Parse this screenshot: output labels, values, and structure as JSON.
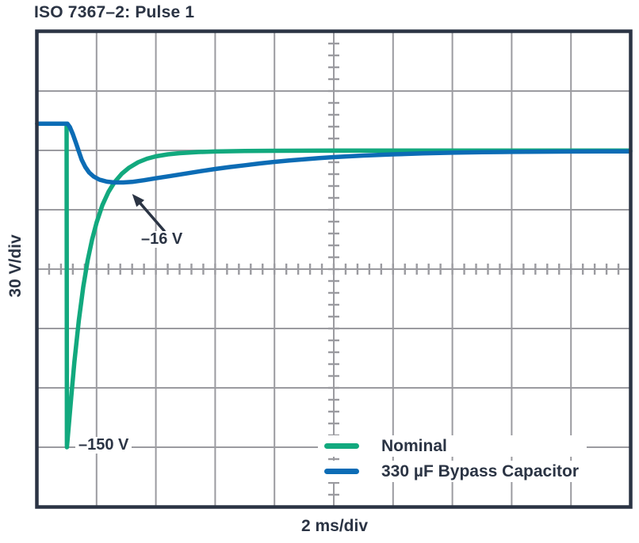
{
  "colors": {
    "navy": "#2B3444",
    "grid": "#9B9BA0",
    "background": "#FFFFFF",
    "green": "#12A97E",
    "blue": "#0C6CB5"
  },
  "chart_data": {
    "type": "line",
    "title": "ISO 7367–2: Pulse 1",
    "xlabel": "2 ms/div",
    "ylabel": "30 V/div",
    "x_units": "ms",
    "y_units": "V",
    "x_per_div": 2,
    "y_per_div": 30,
    "divisions_x": 10,
    "divisions_y": 8,
    "minor_ticks_per_div": 5,
    "x_range": [
      0,
      20
    ],
    "y_range": [
      -180,
      60
    ],
    "grid": "oscilloscope",
    "legend_position": "bottom-right-inside",
    "baseline_V": 13.5,
    "series": [
      {
        "name": "Nominal",
        "color": "#12A97E",
        "points": [
          [
            0,
            13.5
          ],
          [
            0.99,
            13.5
          ],
          [
            1.0,
            -150
          ],
          [
            1.15,
            -124
          ],
          [
            1.25,
            -107
          ],
          [
            1.4,
            -86
          ],
          [
            1.55,
            -69
          ],
          [
            1.7,
            -55.5
          ],
          [
            1.85,
            -45
          ],
          [
            2.0,
            -36.5
          ],
          [
            2.2,
            -27.5
          ],
          [
            2.4,
            -21
          ],
          [
            2.6,
            -16.2
          ],
          [
            2.85,
            -11.8
          ],
          [
            3.1,
            -8.7
          ],
          [
            3.4,
            -6.0
          ],
          [
            3.7,
            -4.2
          ],
          [
            4.0,
            -3.0
          ],
          [
            4.4,
            -2.0
          ],
          [
            4.8,
            -1.4
          ],
          [
            5.4,
            -0.85
          ],
          [
            6.0,
            -0.55
          ],
          [
            7.0,
            -0.3
          ],
          [
            8.0,
            -0.2
          ],
          [
            10.0,
            -0.12
          ],
          [
            14.0,
            -0.1
          ],
          [
            20.0,
            -0.1
          ]
        ]
      },
      {
        "name": "330 µF Bypass Capacitor",
        "color": "#0C6CB5",
        "points": [
          [
            0,
            13.5
          ],
          [
            1.02,
            13.5
          ],
          [
            1.1,
            11.8
          ],
          [
            1.2,
            8.2
          ],
          [
            1.3,
            4
          ],
          [
            1.4,
            -0.5
          ],
          [
            1.5,
            -4.8
          ],
          [
            1.62,
            -8.4
          ],
          [
            1.75,
            -11.2
          ],
          [
            1.9,
            -13.2
          ],
          [
            2.1,
            -14.8
          ],
          [
            2.35,
            -15.8
          ],
          [
            2.6,
            -16.2
          ],
          [
            2.9,
            -16.2
          ],
          [
            3.2,
            -15.9
          ],
          [
            3.6,
            -15.1
          ],
          [
            4.0,
            -14.1
          ],
          [
            4.5,
            -12.9
          ],
          [
            5.0,
            -11.7
          ],
          [
            5.5,
            -10.5
          ],
          [
            6.0,
            -9.4
          ],
          [
            6.5,
            -8.4
          ],
          [
            7.0,
            -7.5
          ],
          [
            7.5,
            -6.6
          ],
          [
            8.0,
            -5.8
          ],
          [
            8.5,
            -5.1
          ],
          [
            9.0,
            -4.5
          ],
          [
            9.5,
            -3.9
          ],
          [
            10.0,
            -3.4
          ],
          [
            10.5,
            -3.0
          ],
          [
            11.0,
            -2.6
          ],
          [
            11.5,
            -2.3
          ],
          [
            12.0,
            -2.0
          ],
          [
            13.0,
            -1.5
          ],
          [
            14.0,
            -1.15
          ],
          [
            15.0,
            -0.9
          ],
          [
            16.0,
            -0.75
          ],
          [
            17.0,
            -0.63
          ],
          [
            18.0,
            -0.55
          ],
          [
            19.0,
            -0.5
          ],
          [
            20.0,
            -0.48
          ]
        ]
      }
    ],
    "annotations": [
      {
        "text": "–16 V",
        "points_to": "330 µF Bypass Capacitor minimum",
        "arrow_tip_tV": [
          3.2,
          -22
        ],
        "arrow_tail_tV": [
          4.3,
          -41
        ]
      },
      {
        "text": "–150 V",
        "points_to": "Nominal minimum",
        "at_tV": [
          1.4,
          -150
        ]
      }
    ]
  }
}
